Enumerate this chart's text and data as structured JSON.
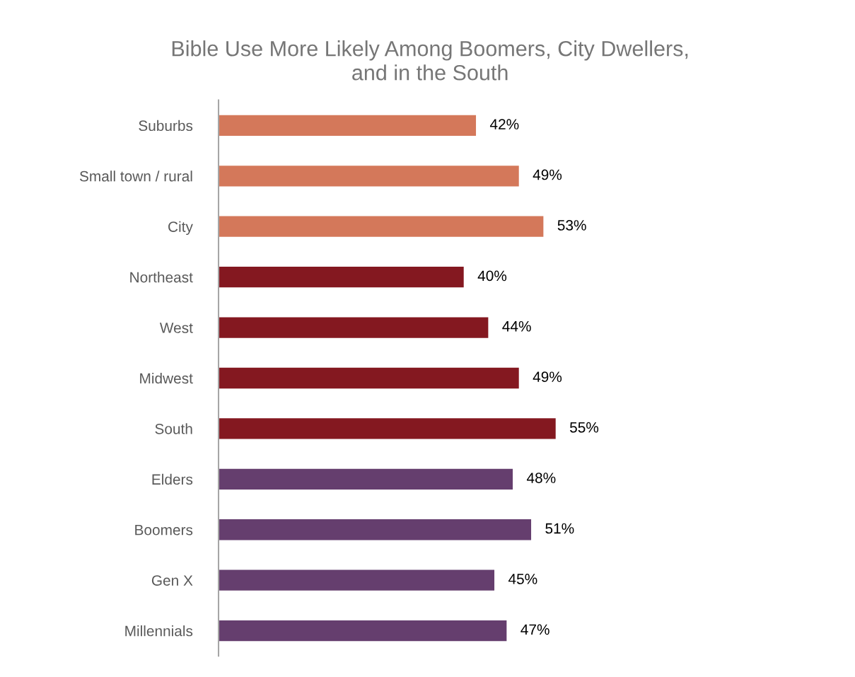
{
  "chart_data": {
    "type": "bar",
    "orientation": "horizontal",
    "title": "Bible Use More Likely Among Boomers, City Dwellers,\nand in the South",
    "categories": [
      "Suburbs",
      "Small town / rural",
      "City",
      "Northeast",
      "West",
      "Midwest",
      "South",
      "Elders",
      "Boomers",
      "Gen X",
      "Millennials"
    ],
    "values": [
      42,
      49,
      53,
      40,
      44,
      49,
      55,
      48,
      51,
      45,
      47
    ],
    "value_labels": [
      "42%",
      "49%",
      "53%",
      "40%",
      "44%",
      "49%",
      "55%",
      "48%",
      "51%",
      "45%",
      "47%"
    ],
    "colors": [
      "#d4785a",
      "#d4785a",
      "#d4785a",
      "#841820",
      "#841820",
      "#841820",
      "#841820",
      "#653e6e",
      "#653e6e",
      "#653e6e",
      "#653e6e"
    ],
    "tick_labels": "y",
    "grid": false,
    "legend": false
  }
}
